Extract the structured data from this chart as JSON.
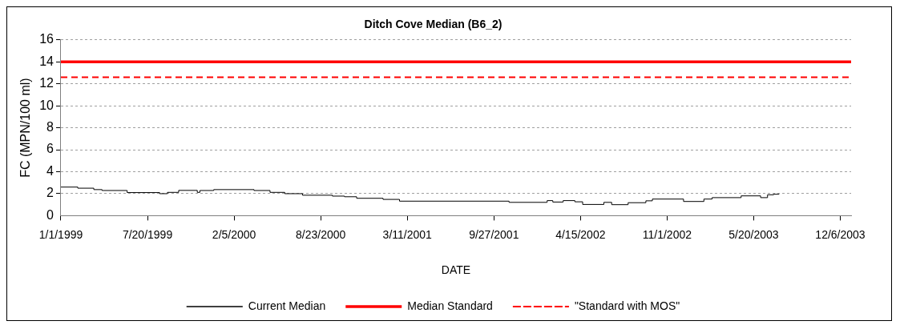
{
  "chart_data": {
    "type": "step",
    "title": "Ditch Cove Median (B6_2)",
    "xlabel": "DATE",
    "ylabel": "FC (MPN/100 ml)",
    "xlim": [
      "1999-01-01",
      "2003-12-31"
    ],
    "xticks": [
      {
        "value": "1999-01-01",
        "label": "1/1/1999"
      },
      {
        "value": "1999-07-20",
        "label": "7/20/1999"
      },
      {
        "value": "2000-02-05",
        "label": "2/5/2000"
      },
      {
        "value": "2000-08-23",
        "label": "8/23/2000"
      },
      {
        "value": "2001-03-11",
        "label": "3/11/2001"
      },
      {
        "value": "2001-09-27",
        "label": "9/27/2001"
      },
      {
        "value": "2002-04-15",
        "label": "4/15/2002"
      },
      {
        "value": "2002-11-01",
        "label": "11/1/2002"
      },
      {
        "value": "2003-05-20",
        "label": "5/20/2003"
      },
      {
        "value": "2003-12-06",
        "label": "12/6/2003"
      }
    ],
    "ylim": [
      0,
      16
    ],
    "yticks": [
      0,
      2,
      4,
      6,
      8,
      10,
      12,
      14,
      16
    ],
    "grid": "y",
    "legend": "bottom",
    "line_style": "solid",
    "marker": "none",
    "series": [
      {
        "name": "Current Median",
        "color": "#000000",
        "x": [
          "1999-01-01",
          "1999-02-09",
          "1999-03-18",
          "1999-04-06",
          "1999-06-03",
          "1999-08-17",
          "1999-09-04",
          "1999-09-30",
          "1999-11-12",
          "1999-11-18",
          "1999-12-20",
          "2000-03-22",
          "2000-04-28",
          "2000-06-01",
          "2000-07-12",
          "2000-09-19",
          "2000-10-17",
          "2000-11-14",
          "2001-01-14",
          "2001-02-21",
          "2001-11-01",
          "2002-01-28",
          "2002-02-10",
          "2002-03-06",
          "2002-04-02",
          "2002-04-20",
          "2002-06-08",
          "2002-06-26",
          "2002-08-03",
          "2002-09-13",
          "2002-09-28",
          "2002-12-09",
          "2003-01-25",
          "2003-02-13",
          "2003-04-21",
          "2003-06-05",
          "2003-06-21",
          "2003-07-05",
          "2003-07-18"
        ],
        "values": [
          2.6,
          2.5,
          2.37,
          2.29,
          2.1,
          2.0,
          2.12,
          2.3,
          2.12,
          2.29,
          2.37,
          2.29,
          2.12,
          2.0,
          1.86,
          1.78,
          1.72,
          1.58,
          1.48,
          1.32,
          1.21,
          1.37,
          1.24,
          1.37,
          1.26,
          1.02,
          1.21,
          1.0,
          1.18,
          1.35,
          1.51,
          1.29,
          1.51,
          1.64,
          1.8,
          1.64,
          1.9,
          1.95,
          1.95
        ]
      }
    ],
    "ref_lines": [
      {
        "axis": "y",
        "value": 14,
        "label": "Median Standard",
        "color": "#ff0000",
        "line_style": "solid"
      },
      {
        "axis": "y",
        "value": 12.6,
        "label": "\"Standard with MOS\"",
        "color": "#ff0000",
        "line_style": "dashed"
      }
    ]
  }
}
